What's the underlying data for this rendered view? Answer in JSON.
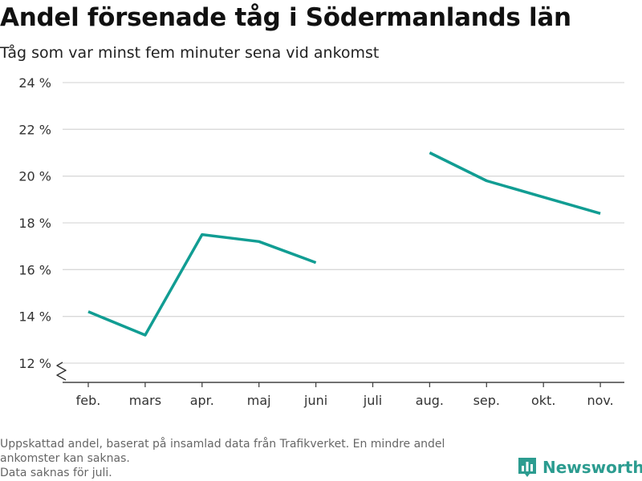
{
  "header": {
    "title": "Andel försenade tåg i Södermanlands län",
    "subtitle": "Tåg som var minst fem minuter sena vid ankomst"
  },
  "footer": {
    "note_line1": "Uppskattad andel, baserat på insamlad data från Trafikverket. En mindre andel",
    "note_line2": "ankomster kan saknas.",
    "note_line3": "Data saknas för juli.",
    "brand": "Newsworthy"
  },
  "colors": {
    "line": "#119d93",
    "grid": "#d9d9d9",
    "axis": "#444444",
    "brand": "#2c9c90"
  },
  "icons": {
    "brand_logo": "newsworthy-logo-icon",
    "axis_break": "axis-break-icon"
  },
  "chart_data": {
    "type": "line",
    "title": "Andel försenade tåg i Södermanlands län",
    "subtitle": "Tåg som var minst fem minuter sena vid ankomst",
    "categories": [
      "feb.",
      "mars",
      "apr.",
      "maj",
      "juni",
      "juli",
      "aug.",
      "sep.",
      "okt.",
      "nov."
    ],
    "series": [
      {
        "values": [
          14.2,
          13.2,
          17.5,
          17.2,
          16.3,
          null,
          21.0,
          19.8,
          19.1,
          18.4
        ]
      }
    ],
    "ylim": [
      12,
      24
    ],
    "yticks": [
      12,
      14,
      16,
      18,
      20,
      22,
      24
    ],
    "ytick_suffix": " %",
    "grid": true,
    "xlabel": "",
    "ylabel": ""
  }
}
